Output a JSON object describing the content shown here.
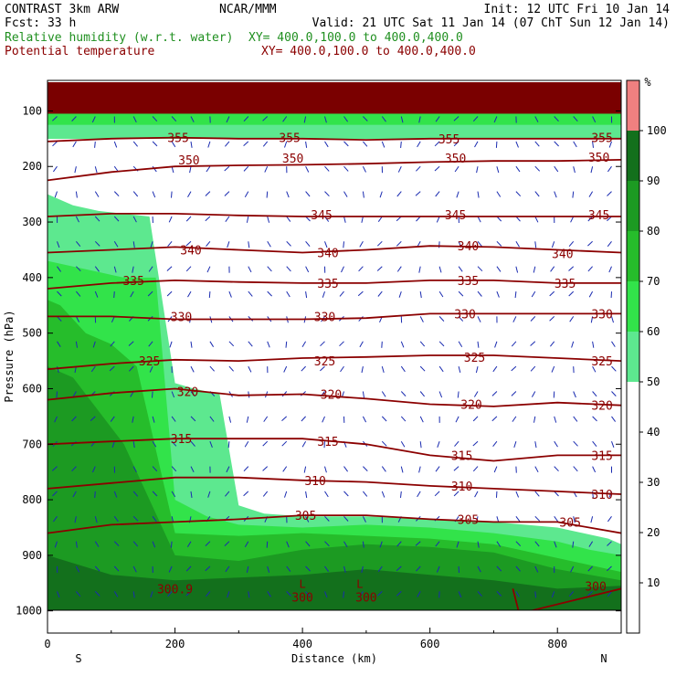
{
  "header": {
    "model": "CONTRAST  3km ARW",
    "center": "NCAR/MMM",
    "init": "Init: 12 UTC Fri 10 Jan 14",
    "fcst": "Fcst:   33 h",
    "valid": "Valid: 21 UTC Sat 11 Jan 14 (07 ChT Sun 12 Jan 14)",
    "field1": "Relative humidity (w.r.t. water)",
    "field1_xy": "XY= 400.0,100.0 to 400.0,400.0",
    "field2": "Potential temperature",
    "field2_xy": "XY= 400.0,100.0 to 400.0,400.0",
    "colors": {
      "rh_label": "#1f8f1f",
      "theta_label": "#8b0000",
      "text": "#000000"
    }
  },
  "chart_data": {
    "type": "heatmap",
    "xlabel": "Distance (km)",
    "ylabel": "Pressure (hPa)",
    "xlim": [
      0,
      900
    ],
    "ylim": [
      1040,
      45
    ],
    "x_ticks": [
      0,
      200,
      400,
      600,
      800
    ],
    "y_ticks": [
      100,
      200,
      300,
      400,
      500,
      600,
      700,
      800,
      900,
      1000
    ],
    "end_labels": {
      "left": "S",
      "right": "N"
    },
    "colorbar": {
      "unit": "%",
      "levels": [
        10,
        20,
        30,
        40,
        50,
        60,
        70,
        80,
        90,
        100
      ],
      "colors": [
        "#ffffff",
        "#ffffff",
        "#ffffff",
        "#ffffff",
        "#ffffff",
        "#5de88f",
        "#32e34a",
        "#26bd2b",
        "#1c9a22",
        "#13701c",
        "#f08080"
      ]
    },
    "rh_regions": [
      {
        "level": 60,
        "color": "#5de88f",
        "x": [
          0,
          40,
          80,
          120,
          160,
          200,
          230,
          270,
          300,
          340,
          400,
          500,
          600,
          700,
          800,
          880,
          900
        ],
        "p": [
          250,
          270,
          280,
          285,
          290,
          590,
          600,
          610,
          810,
          825,
          830,
          830,
          835,
          840,
          850,
          870,
          880
        ]
      },
      {
        "level": 70,
        "color": "#32e34a",
        "x": [
          0,
          40,
          80,
          120,
          170,
          200,
          250,
          300,
          400,
          500,
          600,
          700,
          800,
          850,
          900
        ],
        "p": [
          370,
          380,
          390,
          400,
          400,
          800,
          830,
          845,
          850,
          845,
          850,
          860,
          875,
          890,
          900
        ]
      },
      {
        "level": 80,
        "color": "#26bd2b",
        "x": [
          0,
          20,
          60,
          100,
          140,
          200,
          300,
          400,
          500,
          600,
          700,
          800,
          900
        ],
        "p": [
          440,
          450,
          500,
          520,
          560,
          860,
          865,
          860,
          865,
          870,
          880,
          905,
          930
        ]
      },
      {
        "level": 90,
        "color": "#1c9a22",
        "x": [
          0,
          40,
          80,
          120,
          200,
          300,
          400,
          500,
          600,
          700,
          800,
          900
        ],
        "p": [
          560,
          580,
          640,
          700,
          900,
          910,
          890,
          880,
          885,
          895,
          925,
          945
        ]
      },
      {
        "level": 100,
        "color": "#13701c",
        "x": [
          0,
          100,
          200,
          300,
          400,
          500,
          600,
          700,
          800,
          900
        ],
        "p": [
          900,
          935,
          945,
          940,
          935,
          925,
          935,
          945,
          960,
          955
        ]
      }
    ],
    "theta_lines": [
      {
        "value": 300,
        "color": "#8b0000",
        "x": [
          730,
          740,
          900
        ],
        "p": [
          960,
          1005,
          960
        ]
      },
      {
        "value": 305,
        "color": "#8b0000",
        "x": [
          0,
          100,
          200,
          300,
          400,
          500,
          600,
          700,
          800,
          900
        ],
        "p": [
          860,
          845,
          840,
          835,
          828,
          828,
          835,
          840,
          840,
          860
        ]
      },
      {
        "value": 310,
        "color": "#8b0000",
        "x": [
          0,
          100,
          200,
          300,
          400,
          500,
          600,
          700,
          800,
          900
        ],
        "p": [
          780,
          770,
          760,
          760,
          765,
          768,
          775,
          780,
          785,
          790
        ]
      },
      {
        "value": 315,
        "color": "#8b0000",
        "x": [
          0,
          100,
          200,
          300,
          400,
          500,
          600,
          700,
          800,
          900
        ],
        "p": [
          700,
          695,
          690,
          690,
          690,
          700,
          720,
          730,
          720,
          720
        ]
      },
      {
        "value": 320,
        "color": "#8b0000",
        "x": [
          0,
          100,
          200,
          300,
          400,
          500,
          600,
          700,
          800,
          900
        ],
        "p": [
          620,
          608,
          600,
          612,
          610,
          618,
          628,
          632,
          625,
          630
        ]
      },
      {
        "value": 325,
        "color": "#8b0000",
        "x": [
          0,
          100,
          200,
          300,
          400,
          500,
          600,
          700,
          800,
          900
        ],
        "p": [
          565,
          555,
          548,
          550,
          545,
          543,
          540,
          540,
          545,
          550
        ]
      },
      {
        "value": 330,
        "color": "#8b0000",
        "x": [
          0,
          100,
          200,
          300,
          400,
          500,
          600,
          700,
          800,
          900
        ],
        "p": [
          470,
          470,
          475,
          475,
          475,
          473,
          465,
          465,
          465,
          465
        ]
      },
      {
        "value": 335,
        "color": "#8b0000",
        "x": [
          0,
          100,
          200,
          300,
          400,
          500,
          600,
          700,
          800,
          900
        ],
        "p": [
          420,
          410,
          405,
          408,
          410,
          410,
          405,
          405,
          410,
          410
        ]
      },
      {
        "value": 340,
        "color": "#8b0000",
        "x": [
          0,
          100,
          200,
          300,
          400,
          500,
          600,
          700,
          800,
          900
        ],
        "p": [
          355,
          350,
          345,
          350,
          355,
          350,
          343,
          345,
          350,
          355
        ]
      },
      {
        "value": 345,
        "color": "#8b0000",
        "x": [
          0,
          100,
          200,
          300,
          400,
          500,
          600,
          700,
          800,
          900
        ],
        "p": [
          290,
          285,
          285,
          288,
          290,
          290,
          290,
          290,
          290,
          290
        ]
      },
      {
        "value": 350,
        "color": "#8b0000",
        "x": [
          0,
          100,
          200,
          300,
          400,
          500,
          600,
          700,
          800,
          900
        ],
        "p": [
          225,
          210,
          200,
          198,
          197,
          195,
          192,
          190,
          190,
          188
        ]
      },
      {
        "value": 355,
        "color": "#8b0000",
        "x": [
          0,
          100,
          200,
          300,
          400,
          500,
          600,
          700,
          800,
          900
        ],
        "p": [
          155,
          150,
          148,
          150,
          150,
          152,
          150,
          150,
          150,
          150
        ]
      }
    ],
    "theta_labels": [
      {
        "text": "355",
        "x": 205,
        "p": 148
      },
      {
        "text": "355",
        "x": 380,
        "p": 148
      },
      {
        "text": "355",
        "x": 630,
        "p": 150
      },
      {
        "text": "355",
        "x": 870,
        "p": 148
      },
      {
        "text": "350",
        "x": 222,
        "p": 188
      },
      {
        "text": "350",
        "x": 385,
        "p": 185
      },
      {
        "text": "350",
        "x": 640,
        "p": 185
      },
      {
        "text": "350",
        "x": 865,
        "p": 183
      },
      {
        "text": "345",
        "x": 430,
        "p": 287
      },
      {
        "text": "345",
        "x": 640,
        "p": 287
      },
      {
        "text": "345",
        "x": 865,
        "p": 287
      },
      {
        "text": "340",
        "x": 225,
        "p": 350
      },
      {
        "text": "340",
        "x": 440,
        "p": 355
      },
      {
        "text": "340",
        "x": 660,
        "p": 343
      },
      {
        "text": "340",
        "x": 808,
        "p": 357
      },
      {
        "text": "335",
        "x": 135,
        "p": 405
      },
      {
        "text": "335",
        "x": 440,
        "p": 410
      },
      {
        "text": "335",
        "x": 660,
        "p": 405
      },
      {
        "text": "335",
        "x": 812,
        "p": 410
      },
      {
        "text": "330",
        "x": 210,
        "p": 470
      },
      {
        "text": "330",
        "x": 435,
        "p": 470
      },
      {
        "text": "330",
        "x": 655,
        "p": 465
      },
      {
        "text": "330",
        "x": 870,
        "p": 465
      },
      {
        "text": "325",
        "x": 160,
        "p": 550
      },
      {
        "text": "325",
        "x": 435,
        "p": 550
      },
      {
        "text": "325",
        "x": 670,
        "p": 543
      },
      {
        "text": "325",
        "x": 870,
        "p": 550
      },
      {
        "text": "320",
        "x": 220,
        "p": 605
      },
      {
        "text": "320",
        "x": 445,
        "p": 610
      },
      {
        "text": "320",
        "x": 665,
        "p": 628
      },
      {
        "text": "320",
        "x": 870,
        "p": 630
      },
      {
        "text": "315",
        "x": 210,
        "p": 690
      },
      {
        "text": "315",
        "x": 440,
        "p": 695
      },
      {
        "text": "315",
        "x": 650,
        "p": 720
      },
      {
        "text": "315",
        "x": 870,
        "p": 720
      },
      {
        "text": "310",
        "x": 420,
        "p": 765
      },
      {
        "text": "310",
        "x": 650,
        "p": 775
      },
      {
        "text": "310",
        "x": 870,
        "p": 790
      },
      {
        "text": "305",
        "x": 405,
        "p": 828
      },
      {
        "text": "305",
        "x": 660,
        "p": 835
      },
      {
        "text": "305",
        "x": 820,
        "p": 840
      },
      {
        "text": "300.9",
        "x": 200,
        "p": 960
      },
      {
        "text": "300",
        "x": 400,
        "p": 975
      },
      {
        "text": "300",
        "x": 500,
        "p": 975
      },
      {
        "text": "300",
        "x": 860,
        "p": 955
      }
    ],
    "low_markers": [
      {
        "text": "L",
        "x": 400,
        "p": 950
      },
      {
        "text": "L",
        "x": 490,
        "p": 950
      }
    ]
  }
}
